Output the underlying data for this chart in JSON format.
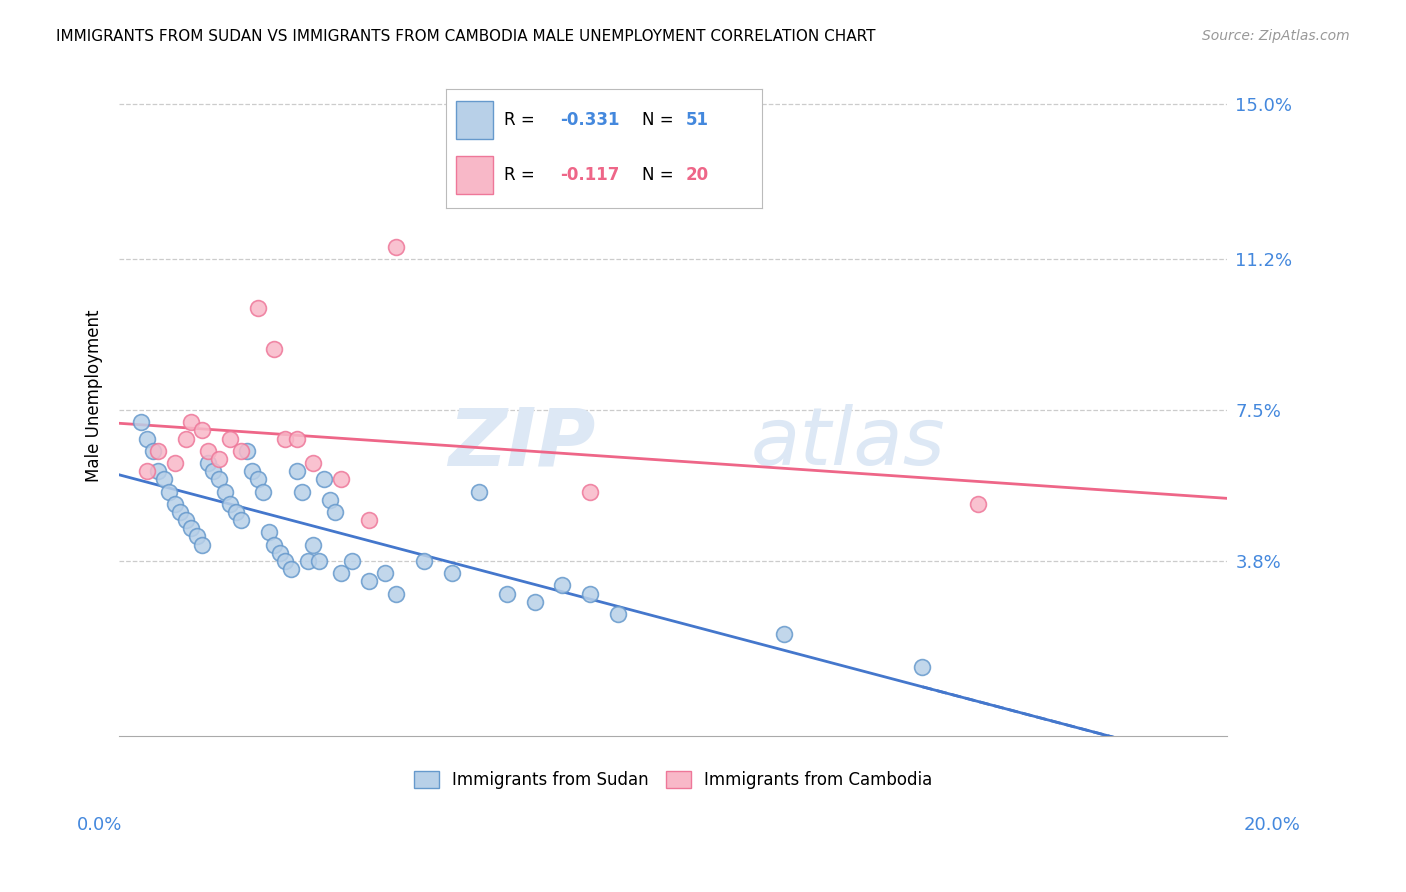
{
  "title": "IMMIGRANTS FROM SUDAN VS IMMIGRANTS FROM CAMBODIA MALE UNEMPLOYMENT CORRELATION CHART",
  "source": "Source: ZipAtlas.com",
  "ylabel": "Male Unemployment",
  "ytick_values": [
    0.0,
    0.038,
    0.075,
    0.112,
    0.15
  ],
  "ytick_labels": [
    "",
    "3.8%",
    "7.5%",
    "11.2%",
    "15.0%"
  ],
  "xlim": [
    0.0,
    0.2
  ],
  "ylim": [
    -0.005,
    0.162
  ],
  "legend_sudan_r": "-0.331",
  "legend_sudan_n": "51",
  "legend_cambodia_r": "-0.117",
  "legend_cambodia_n": "20",
  "sudan_face_color": "#b8d0e8",
  "sudan_edge_color": "#6699cc",
  "cambodia_face_color": "#f8b8c8",
  "cambodia_edge_color": "#ee7799",
  "sudan_line_color": "#4477cc",
  "cambodia_line_color": "#ee6688",
  "grid_color": "#cccccc",
  "title_fontsize": 11,
  "source_fontsize": 10,
  "axis_label_fontsize": 12,
  "tick_fontsize": 13,
  "watermark_color": "#dde8f5",
  "sudan_x": [
    0.004,
    0.005,
    0.006,
    0.007,
    0.008,
    0.009,
    0.01,
    0.011,
    0.012,
    0.013,
    0.014,
    0.015,
    0.016,
    0.017,
    0.018,
    0.019,
    0.02,
    0.021,
    0.022,
    0.023,
    0.024,
    0.025,
    0.026,
    0.027,
    0.028,
    0.029,
    0.03,
    0.031,
    0.032,
    0.033,
    0.034,
    0.035,
    0.036,
    0.037,
    0.038,
    0.039,
    0.04,
    0.042,
    0.045,
    0.048,
    0.05,
    0.055,
    0.06,
    0.065,
    0.07,
    0.075,
    0.08,
    0.085,
    0.09,
    0.12,
    0.145
  ],
  "sudan_y": [
    0.072,
    0.068,
    0.065,
    0.06,
    0.058,
    0.055,
    0.052,
    0.05,
    0.048,
    0.046,
    0.044,
    0.042,
    0.062,
    0.06,
    0.058,
    0.055,
    0.052,
    0.05,
    0.048,
    0.065,
    0.06,
    0.058,
    0.055,
    0.045,
    0.042,
    0.04,
    0.038,
    0.036,
    0.06,
    0.055,
    0.038,
    0.042,
    0.038,
    0.058,
    0.053,
    0.05,
    0.035,
    0.038,
    0.033,
    0.035,
    0.03,
    0.038,
    0.035,
    0.055,
    0.03,
    0.028,
    0.032,
    0.03,
    0.025,
    0.02,
    0.012
  ],
  "cambodia_x": [
    0.005,
    0.007,
    0.01,
    0.012,
    0.013,
    0.015,
    0.016,
    0.018,
    0.02,
    0.022,
    0.025,
    0.028,
    0.03,
    0.032,
    0.035,
    0.04,
    0.045,
    0.05,
    0.085,
    0.155
  ],
  "cambodia_y": [
    0.06,
    0.065,
    0.062,
    0.068,
    0.072,
    0.07,
    0.065,
    0.063,
    0.068,
    0.065,
    0.1,
    0.09,
    0.068,
    0.068,
    0.062,
    0.058,
    0.048,
    0.115,
    0.055,
    0.052
  ]
}
